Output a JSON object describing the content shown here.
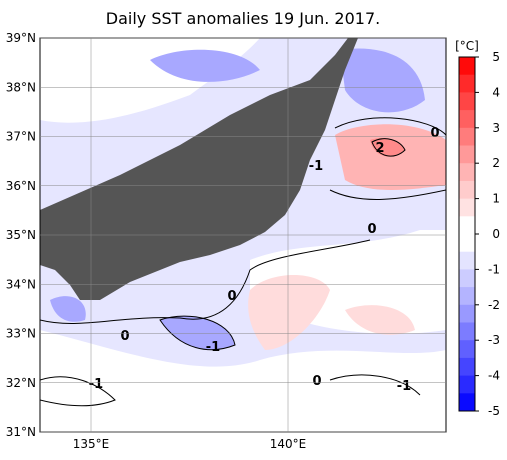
{
  "title": "Daily SST anomalies 19 Jun. 2017.",
  "unit": "[°C]",
  "lat_ticks": [
    {
      "value": 39,
      "label": "39°N"
    },
    {
      "value": 38,
      "label": "38°N"
    },
    {
      "value": 37,
      "label": "37°N"
    },
    {
      "value": 36,
      "label": "36°N"
    },
    {
      "value": 35,
      "label": "35°N"
    },
    {
      "value": 34,
      "label": "34°N"
    },
    {
      "value": 33,
      "label": "33°N"
    },
    {
      "value": 32,
      "label": "32°N"
    },
    {
      "value": 31,
      "label": "31°N"
    }
  ],
  "lon_ticks": [
    {
      "value": 135,
      "label": "135°E"
    },
    {
      "value": 140,
      "label": "140°E"
    }
  ],
  "colorbar": {
    "ticks": [
      5,
      4,
      3,
      2,
      1,
      0,
      -1,
      -2,
      -3,
      -4,
      -5
    ],
    "colors": [
      "#ff0a0a",
      "#ff2a2a",
      "#ff4545",
      "#ff6060",
      "#ff7c7c",
      "#ff9999",
      "#ffb4b4",
      "#ffcccc",
      "#ffe2e2",
      "#ffffff",
      "#ffffff",
      "#e4e4ff",
      "#ccccff",
      "#b4b4ff",
      "#9999ff",
      "#7c7cff",
      "#6060ff",
      "#4545ff",
      "#2a2aff",
      "#0a0aff"
    ]
  },
  "contour_labels": [
    "2",
    "0",
    "-1",
    "0",
    "0",
    "-1",
    "0",
    "-1",
    "0",
    "-1"
  ]
}
